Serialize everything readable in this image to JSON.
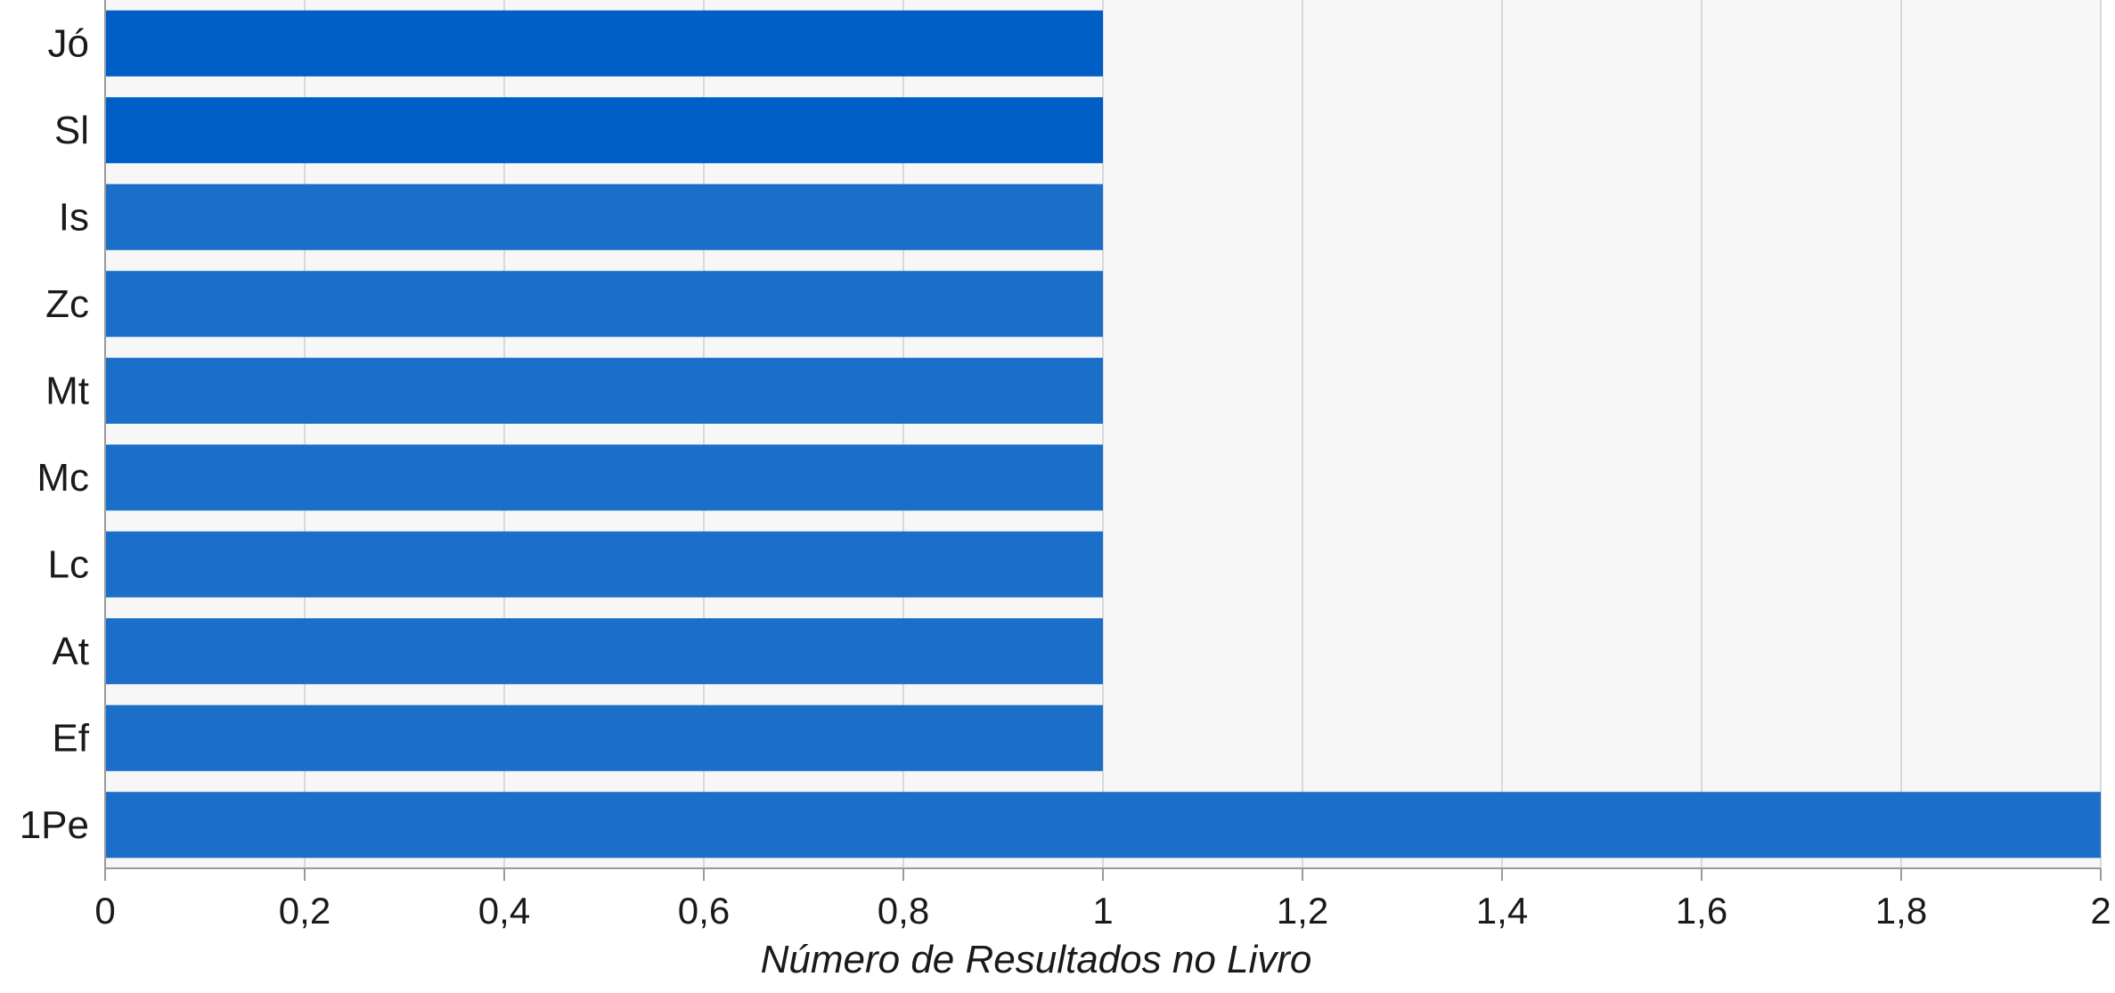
{
  "chart_data": {
    "type": "bar",
    "orientation": "horizontal",
    "categories": [
      "Jó",
      "Sl",
      "Is",
      "Zc",
      "Mt",
      "Mc",
      "Lc",
      "At",
      "Ef",
      "1Pe"
    ],
    "values": [
      1,
      1,
      1,
      1,
      1,
      1,
      1,
      1,
      1,
      2
    ],
    "xlabel": "Número de Resultados no Livro",
    "ylabel": "",
    "xlim": [
      0,
      2
    ],
    "xticks": [
      0,
      0.2,
      0.4,
      0.6,
      0.8,
      1,
      1.2,
      1.4,
      1.6,
      1.8,
      2
    ],
    "xtick_labels": [
      "0",
      "0,2",
      "0,4",
      "0,6",
      "0,8",
      "1",
      "1,2",
      "1,4",
      "1,6",
      "1,8",
      "2"
    ],
    "grid": true,
    "legend": false,
    "colors": {
      "bar": "#1c6fc9",
      "bar_emphasis": "#005fc6",
      "plot_background": "#f7f7f7",
      "grid": "#d9d9d9",
      "axis": "#9a9a9a",
      "text": "#1a1a1a"
    },
    "emphasized_categories": [
      "Jó",
      "Sl"
    ]
  }
}
